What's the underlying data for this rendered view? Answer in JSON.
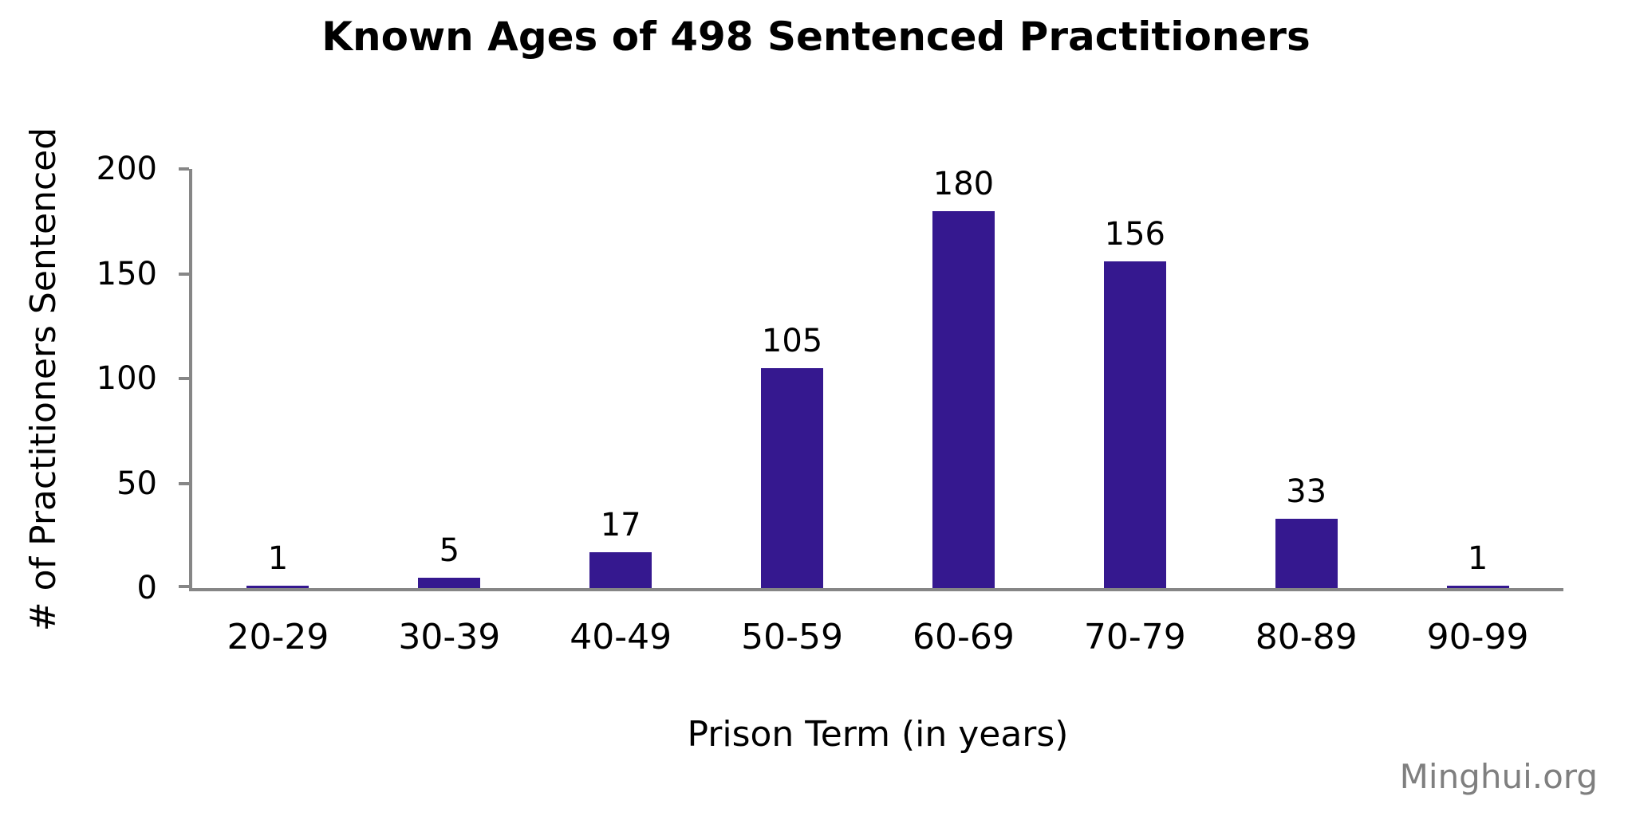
{
  "watermark": "Minghui.org",
  "colors": {
    "bar": "#35188F",
    "axis": "#868686",
    "text": "#000000",
    "watermark": "#7F7F7F"
  },
  "chart_data": {
    "type": "bar",
    "title": "Known Ages of 498 Sentenced Practitioners",
    "categories": [
      "20-29",
      "30-39",
      "40-49",
      "50-59",
      "60-69",
      "70-79",
      "80-89",
      "90-99"
    ],
    "values": [
      1,
      5,
      17,
      105,
      180,
      156,
      33,
      1
    ],
    "data_labels": [
      "1",
      "5",
      "17",
      "105",
      "180",
      "156",
      "33",
      "1"
    ],
    "xlabel": "Prison Term (in years)",
    "ylabel": "# of Practitioners Sentenced",
    "ylim": [
      0,
      200
    ],
    "yticks": [
      0,
      50,
      100,
      150,
      200
    ],
    "grid": false,
    "legend": "none",
    "bar_color": "#35188F"
  }
}
